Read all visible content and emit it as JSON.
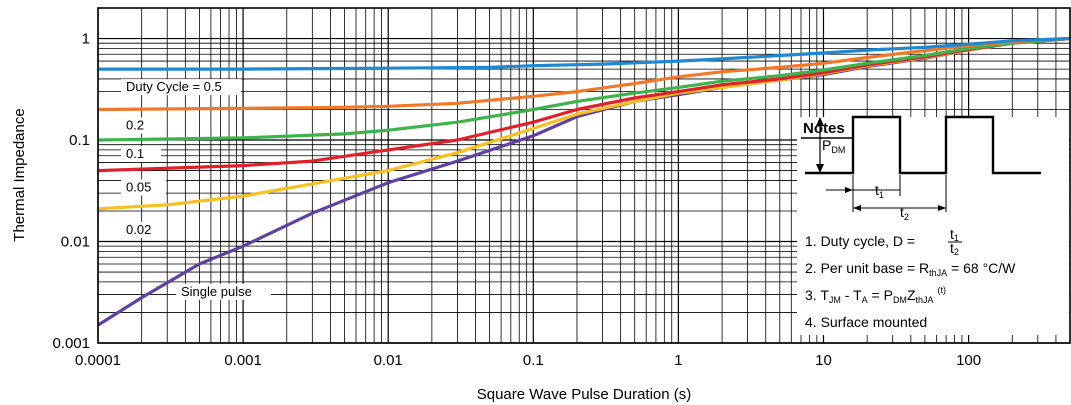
{
  "chart_data": {
    "type": "line",
    "xlabel": "Square Wave Pulse Duration (s)",
    "ylabel": "Thermal Impedance",
    "x_scale": "log",
    "y_scale": "log",
    "xlim": [
      0.0001,
      500
    ],
    "ylim": [
      0.001,
      2
    ],
    "grid": true,
    "x_ticks": [
      "0.0001",
      "0.001",
      "0.01",
      "0.1",
      "1",
      "10",
      "100"
    ],
    "y_ticks": [
      "0.001",
      "0.01",
      "0.1",
      "1"
    ],
    "series": [
      {
        "name": "Duty Cycle = 0.5",
        "color": "#1e88d2",
        "points": [
          [
            0.0001,
            0.5
          ],
          [
            0.001,
            0.5
          ],
          [
            0.01,
            0.51
          ],
          [
            0.05,
            0.52
          ],
          [
            0.1,
            0.54
          ],
          [
            0.3,
            0.56
          ],
          [
            1,
            0.6
          ],
          [
            2,
            0.63
          ],
          [
            5,
            0.68
          ],
          [
            10,
            0.72
          ],
          [
            20,
            0.77
          ],
          [
            50,
            0.82
          ],
          [
            100,
            0.88
          ],
          [
            200,
            0.95
          ],
          [
            500,
            1.0
          ]
        ]
      },
      {
        "name": "0.2",
        "color": "#f07828",
        "points": [
          [
            0.0001,
            0.2
          ],
          [
            0.001,
            0.205
          ],
          [
            0.005,
            0.21
          ],
          [
            0.01,
            0.215
          ],
          [
            0.03,
            0.23
          ],
          [
            0.1,
            0.27
          ],
          [
            0.2,
            0.3
          ],
          [
            0.5,
            0.36
          ],
          [
            1,
            0.42
          ],
          [
            2,
            0.47
          ],
          [
            5,
            0.52
          ],
          [
            10,
            0.57
          ],
          [
            20,
            0.65
          ],
          [
            50,
            0.76
          ],
          [
            100,
            0.85
          ],
          [
            200,
            0.93
          ],
          [
            500,
            1.0
          ]
        ]
      },
      {
        "name": "0.1",
        "color": "#3cb44b",
        "points": [
          [
            0.0001,
            0.1
          ],
          [
            0.001,
            0.105
          ],
          [
            0.005,
            0.115
          ],
          [
            0.01,
            0.125
          ],
          [
            0.03,
            0.15
          ],
          [
            0.1,
            0.2
          ],
          [
            0.2,
            0.24
          ],
          [
            0.5,
            0.29
          ],
          [
            1,
            0.33
          ],
          [
            2,
            0.38
          ],
          [
            5,
            0.43
          ],
          [
            10,
            0.49
          ],
          [
            20,
            0.57
          ],
          [
            50,
            0.68
          ],
          [
            100,
            0.8
          ],
          [
            200,
            0.9
          ],
          [
            500,
            1.0
          ]
        ]
      },
      {
        "name": "0.05",
        "color": "#e0202a",
        "points": [
          [
            0.0001,
            0.05
          ],
          [
            0.001,
            0.056
          ],
          [
            0.003,
            0.062
          ],
          [
            0.01,
            0.08
          ],
          [
            0.03,
            0.1
          ],
          [
            0.1,
            0.15
          ],
          [
            0.2,
            0.2
          ],
          [
            0.5,
            0.26
          ],
          [
            1,
            0.3
          ],
          [
            2,
            0.35
          ],
          [
            5,
            0.4
          ],
          [
            10,
            0.46
          ],
          [
            20,
            0.55
          ],
          [
            50,
            0.66
          ],
          [
            100,
            0.78
          ],
          [
            200,
            0.9
          ],
          [
            500,
            1.0
          ]
        ]
      },
      {
        "name": "0.02",
        "color": "#f8c020",
        "points": [
          [
            0.0001,
            0.021
          ],
          [
            0.0003,
            0.023
          ],
          [
            0.001,
            0.028
          ],
          [
            0.003,
            0.037
          ],
          [
            0.01,
            0.05
          ],
          [
            0.03,
            0.075
          ],
          [
            0.1,
            0.13
          ],
          [
            0.2,
            0.18
          ],
          [
            0.5,
            0.24
          ],
          [
            1,
            0.29
          ],
          [
            2,
            0.33
          ],
          [
            5,
            0.39
          ],
          [
            10,
            0.45
          ],
          [
            20,
            0.54
          ],
          [
            50,
            0.65
          ],
          [
            100,
            0.77
          ],
          [
            200,
            0.9
          ],
          [
            500,
            1.0
          ]
        ]
      },
      {
        "name": "Single pulse",
        "color": "#6040a0",
        "points": [
          [
            0.0001,
            0.0015
          ],
          [
            0.0002,
            0.0028
          ],
          [
            0.0005,
            0.006
          ],
          [
            0.001,
            0.009
          ],
          [
            0.003,
            0.019
          ],
          [
            0.01,
            0.038
          ],
          [
            0.03,
            0.062
          ],
          [
            0.1,
            0.11
          ],
          [
            0.2,
            0.17
          ],
          [
            0.5,
            0.24
          ],
          [
            1,
            0.28
          ],
          [
            2,
            0.33
          ],
          [
            5,
            0.39
          ],
          [
            10,
            0.44
          ],
          [
            20,
            0.53
          ],
          [
            50,
            0.64
          ],
          [
            100,
            0.77
          ],
          [
            200,
            0.9
          ],
          [
            500,
            1.0
          ]
        ]
      }
    ],
    "notes": {
      "title": "Notes",
      "items": [
        "1. Duty cycle, D = t1/t2",
        "2. Per unit base = RthJA = 68 °C/W",
        "3. TJM - TA = PDMZthJA (t)",
        "4. Surface mounted"
      ]
    }
  },
  "notes_text": {
    "title": "Notes",
    "pdm_main": "P",
    "pdm_sub": "DM",
    "t1_main": "t",
    "t1_sub": "1",
    "t2_main": "t",
    "t2_sub": "2",
    "n1": "1. Duty cycle, D = ",
    "n1_num": "t",
    "n1_num_sub": "1",
    "n1_den": "t",
    "n1_den_sub": "2",
    "n2a": "2. Per unit base = R",
    "n2_sub": "thJA",
    "n2b": " = 68 °C/W",
    "n3a": "3. T",
    "n3_sub1": "JM",
    "n3b": " - T",
    "n3_sub2": "A",
    "n3c": " = P",
    "n3_sub3": "DM",
    "n3d": "Z",
    "n3_sub4": "thJA",
    "n3_sup": "(t)",
    "n4": "4. Surface mounted"
  }
}
